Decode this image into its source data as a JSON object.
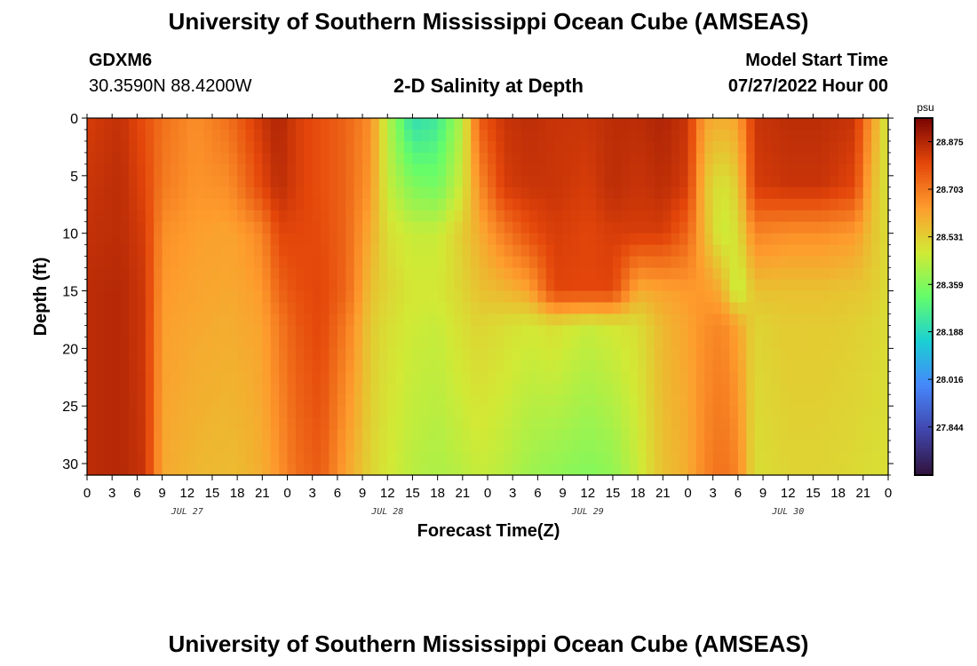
{
  "page": {
    "title": "University of Southern Mississippi Ocean Cube (AMSEAS)",
    "station": "GDXM6",
    "coords": "30.3590N  88.4200W",
    "plot_title": "2-D Salinity at Depth",
    "model_start_label": "Model Start Time",
    "model_start_value": "07/27/2022 Hour 00",
    "footer_title": "University of Southern Mississippi Ocean Cube (AMSEAS)"
  },
  "chart_data": {
    "type": "heatmap",
    "title": "2-D Salinity at Depth",
    "xlabel": "Forecast Time(Z)",
    "ylabel": "Depth (ft)",
    "x_hours_range": [
      0,
      96
    ],
    "x_tick_step_hours": 3,
    "x_tick_labels": [
      "0",
      "3",
      "6",
      "9",
      "12",
      "15",
      "18",
      "21",
      "0",
      "3",
      "6",
      "9",
      "12",
      "15",
      "18",
      "21",
      "0",
      "3",
      "6",
      "9",
      "12",
      "15",
      "18",
      "21",
      "0",
      "3",
      "6",
      "9",
      "12",
      "15",
      "18",
      "21",
      "0"
    ],
    "date_labels": [
      {
        "text": "JUL 27",
        "hour": 12
      },
      {
        "text": "JUL 28",
        "hour": 36
      },
      {
        "text": "JUL 29",
        "hour": 60
      },
      {
        "text": "JUL 30",
        "hour": 84
      }
    ],
    "y_range": [
      0,
      31
    ],
    "y_ticks": [
      0,
      5,
      10,
      15,
      20,
      25,
      30
    ],
    "colorbar": {
      "unit": "psu",
      "range": [
        27.67,
        28.96
      ],
      "ticks": [
        "28.875",
        "28.703",
        "28.531",
        "28.359",
        "28.188",
        "28.016",
        "27.844"
      ],
      "colormap": [
        "#30123b",
        "#4146ac",
        "#4686fb",
        "#1bcfd4",
        "#64fd6a",
        "#d2e935",
        "#fe9b2d",
        "#e4460a",
        "#7a0403"
      ]
    },
    "depth_profile_ft": [
      0,
      6,
      10,
      15,
      18,
      31
    ],
    "columns": [
      {
        "hour": 0,
        "salinity": [
          28.82,
          28.84,
          28.85,
          28.86,
          28.86,
          28.86
        ]
      },
      {
        "hour": 4,
        "salinity": [
          28.85,
          28.86,
          28.86,
          28.87,
          28.87,
          28.87
        ]
      },
      {
        "hour": 7,
        "salinity": [
          28.78,
          28.8,
          28.82,
          28.83,
          28.83,
          28.84
        ]
      },
      {
        "hour": 9,
        "salinity": [
          28.72,
          28.7,
          28.66,
          28.64,
          28.63,
          28.61
        ]
      },
      {
        "hour": 13,
        "salinity": [
          28.66,
          28.65,
          28.63,
          28.62,
          28.61,
          28.58
        ]
      },
      {
        "hour": 17,
        "salinity": [
          28.72,
          28.66,
          28.62,
          28.61,
          28.6,
          28.57
        ]
      },
      {
        "hour": 19,
        "salinity": [
          28.78,
          28.73,
          28.64,
          28.62,
          28.61,
          28.58
        ]
      },
      {
        "hour": 21,
        "salinity": [
          28.84,
          28.8,
          28.68,
          28.64,
          28.62,
          28.6
        ]
      },
      {
        "hour": 23,
        "salinity": [
          28.88,
          28.86,
          28.8,
          28.74,
          28.7,
          28.65
        ]
      },
      {
        "hour": 25,
        "salinity": [
          28.82,
          28.82,
          28.8,
          28.78,
          28.76,
          28.72
        ]
      },
      {
        "hour": 28,
        "salinity": [
          28.78,
          28.78,
          28.79,
          28.8,
          28.8,
          28.76
        ]
      },
      {
        "hour": 31,
        "salinity": [
          28.74,
          28.74,
          28.74,
          28.74,
          28.7,
          28.62
        ]
      },
      {
        "hour": 34,
        "salinity": [
          28.66,
          28.64,
          28.6,
          28.56,
          28.54,
          28.52
        ]
      },
      {
        "hour": 36,
        "salinity": [
          28.44,
          28.46,
          28.5,
          28.52,
          28.5,
          28.48
        ]
      },
      {
        "hour": 39,
        "salinity": [
          28.2,
          28.36,
          28.46,
          28.48,
          28.47,
          28.44
        ]
      },
      {
        "hour": 42,
        "salinity": [
          28.24,
          28.34,
          28.46,
          28.48,
          28.46,
          28.42
        ]
      },
      {
        "hour": 45,
        "salinity": [
          28.44,
          28.48,
          28.54,
          28.52,
          28.5,
          28.44
        ]
      },
      {
        "hour": 47,
        "salinity": [
          28.76,
          28.66,
          28.6,
          28.56,
          28.52,
          28.46
        ]
      },
      {
        "hour": 50,
        "salinity": [
          28.84,
          28.82,
          28.7,
          28.58,
          28.5,
          28.44
        ]
      },
      {
        "hour": 53,
        "salinity": [
          28.86,
          28.84,
          28.78,
          28.62,
          28.48,
          28.4
        ]
      },
      {
        "hour": 56,
        "salinity": [
          28.84,
          28.84,
          28.82,
          28.8,
          28.5,
          28.38
        ]
      },
      {
        "hour": 60,
        "salinity": [
          28.84,
          28.82,
          28.8,
          28.8,
          28.46,
          28.36
        ]
      },
      {
        "hour": 63,
        "salinity": [
          28.86,
          28.86,
          28.82,
          28.8,
          28.48,
          28.38
        ]
      },
      {
        "hour": 66,
        "salinity": [
          28.86,
          28.84,
          28.82,
          28.6,
          28.5,
          28.46
        ]
      },
      {
        "hour": 69,
        "salinity": [
          28.88,
          28.86,
          28.82,
          28.62,
          28.58,
          28.56
        ]
      },
      {
        "hour": 72,
        "salinity": [
          28.84,
          28.82,
          28.74,
          28.64,
          28.62,
          28.6
        ]
      },
      {
        "hour": 74,
        "salinity": [
          28.62,
          28.56,
          28.58,
          28.64,
          28.66,
          28.68
        ]
      },
      {
        "hour": 76,
        "salinity": [
          28.6,
          28.48,
          28.46,
          28.6,
          28.68,
          28.72
        ]
      },
      {
        "hour": 78,
        "salinity": [
          28.62,
          28.54,
          28.5,
          28.44,
          28.62,
          28.68
        ]
      },
      {
        "hour": 80,
        "salinity": [
          28.84,
          28.82,
          28.68,
          28.56,
          28.52,
          28.5
        ]
      },
      {
        "hour": 84,
        "salinity": [
          28.86,
          28.84,
          28.66,
          28.56,
          28.54,
          28.52
        ]
      },
      {
        "hour": 88,
        "salinity": [
          28.86,
          28.84,
          28.66,
          28.56,
          28.54,
          28.52
        ]
      },
      {
        "hour": 92,
        "salinity": [
          28.84,
          28.8,
          28.64,
          28.55,
          28.53,
          28.51
        ]
      },
      {
        "hour": 94,
        "salinity": [
          28.64,
          28.58,
          28.56,
          28.54,
          28.52,
          28.5
        ]
      },
      {
        "hour": 96,
        "salinity": [
          28.46,
          28.48,
          28.5,
          28.5,
          28.5,
          28.5
        ]
      }
    ]
  }
}
